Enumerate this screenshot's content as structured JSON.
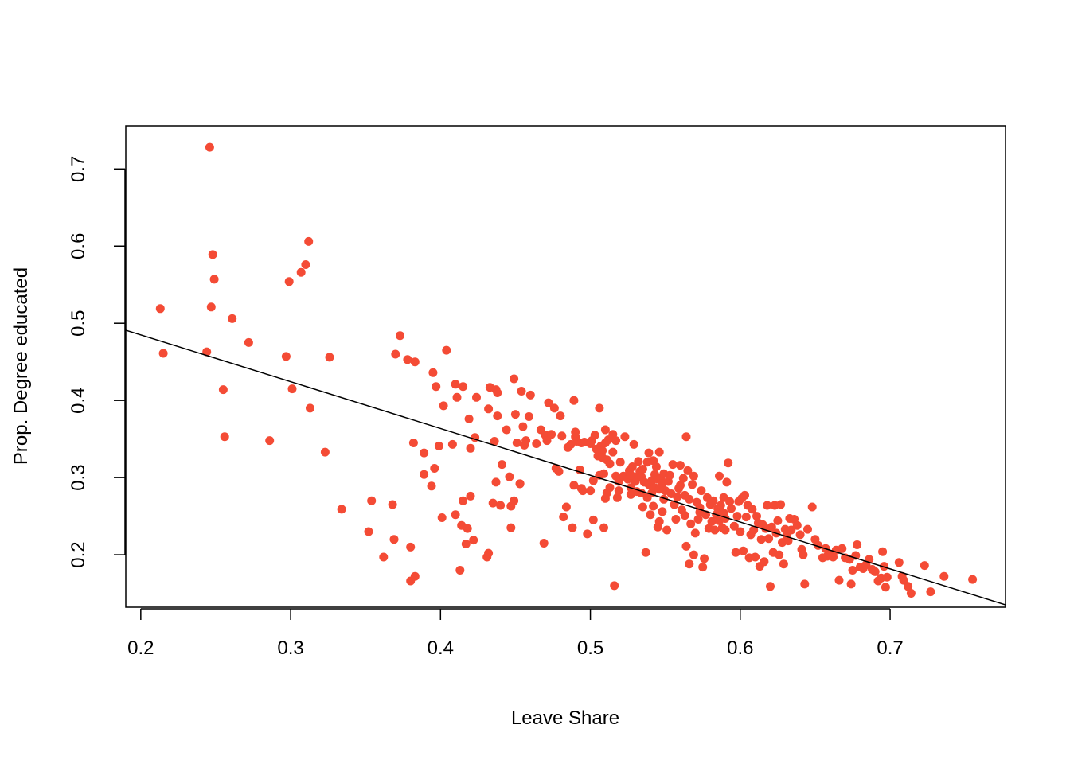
{
  "chart_data": {
    "type": "scatter",
    "title": "",
    "xlabel": "Leave Share",
    "ylabel": "Prop. Degree educated",
    "xlim": [
      0.19,
      0.777
    ],
    "ylim": [
      0.132,
      0.756
    ],
    "x_ticks": [
      0.2,
      0.3,
      0.4,
      0.5,
      0.6,
      0.7
    ],
    "x_tick_labels": [
      "0.2",
      "0.3",
      "0.4",
      "0.5",
      "0.6",
      "0.7"
    ],
    "y_ticks": [
      0.2,
      0.3,
      0.4,
      0.5,
      0.6,
      0.7
    ],
    "y_tick_labels": [
      "0.2",
      "0.3",
      "0.4",
      "0.5",
      "0.6",
      "0.7"
    ],
    "grid": false,
    "point_color": "#f44b35",
    "line_color": "#000000",
    "fit_line": {
      "x": [
        0.19,
        0.777
      ],
      "y": [
        0.491,
        0.135
      ]
    },
    "points": [
      [
        0.213,
        0.519
      ],
      [
        0.215,
        0.461
      ],
      [
        0.244,
        0.463
      ],
      [
        0.246,
        0.728
      ],
      [
        0.247,
        0.521
      ],
      [
        0.248,
        0.589
      ],
      [
        0.249,
        0.557
      ],
      [
        0.255,
        0.414
      ],
      [
        0.256,
        0.353
      ],
      [
        0.261,
        0.506
      ],
      [
        0.272,
        0.475
      ],
      [
        0.286,
        0.348
      ],
      [
        0.297,
        0.457
      ],
      [
        0.299,
        0.554
      ],
      [
        0.301,
        0.415
      ],
      [
        0.307,
        0.566
      ],
      [
        0.31,
        0.576
      ],
      [
        0.312,
        0.606
      ],
      [
        0.313,
        0.39
      ],
      [
        0.323,
        0.333
      ],
      [
        0.326,
        0.456
      ],
      [
        0.334,
        0.259
      ],
      [
        0.352,
        0.23
      ],
      [
        0.354,
        0.27
      ],
      [
        0.362,
        0.197
      ],
      [
        0.368,
        0.265
      ],
      [
        0.369,
        0.22
      ],
      [
        0.37,
        0.46
      ],
      [
        0.373,
        0.484
      ],
      [
        0.378,
        0.453
      ],
      [
        0.38,
        0.21
      ],
      [
        0.38,
        0.166
      ],
      [
        0.382,
        0.345
      ],
      [
        0.383,
        0.172
      ],
      [
        0.383,
        0.45
      ],
      [
        0.389,
        0.332
      ],
      [
        0.389,
        0.304
      ],
      [
        0.394,
        0.289
      ],
      [
        0.395,
        0.436
      ],
      [
        0.396,
        0.312
      ],
      [
        0.397,
        0.418
      ],
      [
        0.399,
        0.341
      ],
      [
        0.401,
        0.248
      ],
      [
        0.402,
        0.393
      ],
      [
        0.404,
        0.465
      ],
      [
        0.408,
        0.343
      ],
      [
        0.41,
        0.252
      ],
      [
        0.41,
        0.421
      ],
      [
        0.411,
        0.404
      ],
      [
        0.413,
        0.18
      ],
      [
        0.414,
        0.238
      ],
      [
        0.415,
        0.27
      ],
      [
        0.415,
        0.418
      ],
      [
        0.417,
        0.214
      ],
      [
        0.418,
        0.234
      ],
      [
        0.419,
        0.376
      ],
      [
        0.42,
        0.338
      ],
      [
        0.42,
        0.276
      ],
      [
        0.422,
        0.219
      ],
      [
        0.423,
        0.352
      ],
      [
        0.424,
        0.404
      ],
      [
        0.431,
        0.197
      ],
      [
        0.432,
        0.202
      ],
      [
        0.432,
        0.389
      ],
      [
        0.433,
        0.417
      ],
      [
        0.435,
        0.267
      ],
      [
        0.436,
        0.347
      ],
      [
        0.437,
        0.414
      ],
      [
        0.437,
        0.294
      ],
      [
        0.438,
        0.38
      ],
      [
        0.438,
        0.41
      ],
      [
        0.44,
        0.264
      ],
      [
        0.441,
        0.317
      ],
      [
        0.444,
        0.362
      ],
      [
        0.446,
        0.301
      ],
      [
        0.447,
        0.235
      ],
      [
        0.447,
        0.263
      ],
      [
        0.449,
        0.27
      ],
      [
        0.449,
        0.428
      ],
      [
        0.45,
        0.382
      ],
      [
        0.451,
        0.345
      ],
      [
        0.453,
        0.292
      ],
      [
        0.454,
        0.412
      ],
      [
        0.455,
        0.366
      ],
      [
        0.456,
        0.342
      ],
      [
        0.457,
        0.348
      ],
      [
        0.459,
        0.379
      ],
      [
        0.46,
        0.407
      ],
      [
        0.464,
        0.344
      ],
      [
        0.467,
        0.362
      ],
      [
        0.469,
        0.215
      ],
      [
        0.47,
        0.355
      ],
      [
        0.471,
        0.348
      ],
      [
        0.472,
        0.397
      ],
      [
        0.474,
        0.356
      ],
      [
        0.476,
        0.39
      ],
      [
        0.477,
        0.312
      ],
      [
        0.479,
        0.308
      ],
      [
        0.48,
        0.38
      ],
      [
        0.481,
        0.354
      ],
      [
        0.482,
        0.249
      ],
      [
        0.484,
        0.262
      ],
      [
        0.485,
        0.339
      ],
      [
        0.487,
        0.343
      ],
      [
        0.488,
        0.235
      ],
      [
        0.489,
        0.29
      ],
      [
        0.489,
        0.4
      ],
      [
        0.49,
        0.353
      ],
      [
        0.49,
        0.359
      ],
      [
        0.491,
        0.347
      ],
      [
        0.493,
        0.31
      ],
      [
        0.494,
        0.345
      ],
      [
        0.494,
        0.286
      ],
      [
        0.495,
        0.283
      ],
      [
        0.496,
        0.346
      ],
      [
        0.498,
        0.227
      ],
      [
        0.5,
        0.344
      ],
      [
        0.5,
        0.283
      ],
      [
        0.501,
        0.348
      ],
      [
        0.502,
        0.296
      ],
      [
        0.502,
        0.245
      ],
      [
        0.503,
        0.355
      ],
      [
        0.504,
        0.337
      ],
      [
        0.505,
        0.328
      ],
      [
        0.505,
        0.337
      ],
      [
        0.506,
        0.303
      ],
      [
        0.506,
        0.39
      ],
      [
        0.507,
        0.341
      ],
      [
        0.508,
        0.335
      ],
      [
        0.508,
        0.326
      ],
      [
        0.509,
        0.235
      ],
      [
        0.509,
        0.305
      ],
      [
        0.51,
        0.345
      ],
      [
        0.51,
        0.362
      ],
      [
        0.51,
        0.273
      ],
      [
        0.511,
        0.28
      ],
      [
        0.511,
        0.323
      ],
      [
        0.512,
        0.349
      ],
      [
        0.513,
        0.287
      ],
      [
        0.513,
        0.318
      ],
      [
        0.515,
        0.356
      ],
      [
        0.515,
        0.333
      ],
      [
        0.516,
        0.16
      ],
      [
        0.517,
        0.302
      ],
      [
        0.517,
        0.348
      ],
      [
        0.518,
        0.274
      ],
      [
        0.519,
        0.295
      ],
      [
        0.519,
        0.283
      ],
      [
        0.52,
        0.32
      ],
      [
        0.522,
        0.302
      ],
      [
        0.523,
        0.353
      ],
      [
        0.525,
        0.298
      ],
      [
        0.526,
        0.309
      ],
      [
        0.527,
        0.287
      ],
      [
        0.527,
        0.278
      ],
      [
        0.528,
        0.314
      ],
      [
        0.529,
        0.301
      ],
      [
        0.529,
        0.343
      ],
      [
        0.53,
        0.295
      ],
      [
        0.531,
        0.282
      ],
      [
        0.532,
        0.321
      ],
      [
        0.533,
        0.308
      ],
      [
        0.534,
        0.28
      ],
      [
        0.534,
        0.301
      ],
      [
        0.535,
        0.311
      ],
      [
        0.535,
        0.262
      ],
      [
        0.536,
        0.294
      ],
      [
        0.537,
        0.203
      ],
      [
        0.538,
        0.32
      ],
      [
        0.538,
        0.274
      ],
      [
        0.539,
        0.332
      ],
      [
        0.539,
        0.291
      ],
      [
        0.54,
        0.252
      ],
      [
        0.541,
        0.296
      ],
      [
        0.541,
        0.28
      ],
      [
        0.542,
        0.263
      ],
      [
        0.542,
        0.322
      ],
      [
        0.543,
        0.304
      ],
      [
        0.543,
        0.287
      ],
      [
        0.544,
        0.314
      ],
      [
        0.545,
        0.236
      ],
      [
        0.545,
        0.298
      ],
      [
        0.546,
        0.333
      ],
      [
        0.546,
        0.243
      ],
      [
        0.547,
        0.3
      ],
      [
        0.548,
        0.256
      ],
      [
        0.548,
        0.292
      ],
      [
        0.549,
        0.305
      ],
      [
        0.549,
        0.272
      ],
      [
        0.55,
        0.283
      ],
      [
        0.551,
        0.232
      ],
      [
        0.552,
        0.295
      ],
      [
        0.553,
        0.303
      ],
      [
        0.554,
        0.279
      ],
      [
        0.555,
        0.317
      ],
      [
        0.556,
        0.265
      ],
      [
        0.557,
        0.246
      ],
      [
        0.558,
        0.275
      ],
      [
        0.559,
        0.286
      ],
      [
        0.56,
        0.316
      ],
      [
        0.561,
        0.258
      ],
      [
        0.562,
        0.299
      ],
      [
        0.563,
        0.277
      ],
      [
        0.563,
        0.251
      ],
      [
        0.564,
        0.353
      ],
      [
        0.564,
        0.211
      ],
      [
        0.565,
        0.309
      ],
      [
        0.566,
        0.272
      ],
      [
        0.566,
        0.188
      ],
      [
        0.567,
        0.24
      ],
      [
        0.568,
        0.291
      ],
      [
        0.569,
        0.302
      ],
      [
        0.569,
        0.2
      ],
      [
        0.57,
        0.228
      ],
      [
        0.571,
        0.268
      ],
      [
        0.572,
        0.246
      ],
      [
        0.573,
        0.261
      ],
      [
        0.574,
        0.283
      ],
      [
        0.575,
        0.184
      ],
      [
        0.576,
        0.195
      ],
      [
        0.577,
        0.252
      ],
      [
        0.578,
        0.274
      ],
      [
        0.579,
        0.234
      ],
      [
        0.58,
        0.265
      ],
      [
        0.581,
        0.243
      ],
      [
        0.582,
        0.27
      ],
      [
        0.583,
        0.232
      ],
      [
        0.584,
        0.252
      ],
      [
        0.585,
        0.26
      ],
      [
        0.586,
        0.244
      ],
      [
        0.586,
        0.302
      ],
      [
        0.587,
        0.264
      ],
      [
        0.588,
        0.235
      ],
      [
        0.589,
        0.254
      ],
      [
        0.589,
        0.274
      ],
      [
        0.59,
        0.232
      ],
      [
        0.591,
        0.294
      ],
      [
        0.592,
        0.319
      ],
      [
        0.593,
        0.269
      ],
      [
        0.594,
        0.26
      ],
      [
        0.596,
        0.237
      ],
      [
        0.597,
        0.203
      ],
      [
        0.598,
        0.25
      ],
      [
        0.599,
        0.269
      ],
      [
        0.6,
        0.23
      ],
      [
        0.601,
        0.273
      ],
      [
        0.602,
        0.205
      ],
      [
        0.603,
        0.277
      ],
      [
        0.604,
        0.249
      ],
      [
        0.605,
        0.264
      ],
      [
        0.606,
        0.196
      ],
      [
        0.607,
        0.226
      ],
      [
        0.608,
        0.259
      ],
      [
        0.609,
        0.232
      ],
      [
        0.61,
        0.197
      ],
      [
        0.611,
        0.25
      ],
      [
        0.612,
        0.241
      ],
      [
        0.613,
        0.185
      ],
      [
        0.614,
        0.22
      ],
      [
        0.615,
        0.239
      ],
      [
        0.616,
        0.191
      ],
      [
        0.617,
        0.234
      ],
      [
        0.618,
        0.264
      ],
      [
        0.619,
        0.221
      ],
      [
        0.62,
        0.159
      ],
      [
        0.621,
        0.236
      ],
      [
        0.622,
        0.203
      ],
      [
        0.623,
        0.264
      ],
      [
        0.624,
        0.228
      ],
      [
        0.625,
        0.244
      ],
      [
        0.626,
        0.2
      ],
      [
        0.627,
        0.265
      ],
      [
        0.628,
        0.216
      ],
      [
        0.629,
        0.188
      ],
      [
        0.63,
        0.233
      ],
      [
        0.631,
        0.225
      ],
      [
        0.632,
        0.218
      ],
      [
        0.633,
        0.247
      ],
      [
        0.634,
        0.232
      ],
      [
        0.636,
        0.246
      ],
      [
        0.638,
        0.238
      ],
      [
        0.64,
        0.226
      ],
      [
        0.641,
        0.207
      ],
      [
        0.642,
        0.2
      ],
      [
        0.643,
        0.162
      ],
      [
        0.645,
        0.233
      ],
      [
        0.648,
        0.262
      ],
      [
        0.65,
        0.22
      ],
      [
        0.652,
        0.212
      ],
      [
        0.655,
        0.196
      ],
      [
        0.657,
        0.208
      ],
      [
        0.658,
        0.198
      ],
      [
        0.66,
        0.2
      ],
      [
        0.662,
        0.197
      ],
      [
        0.664,
        0.206
      ],
      [
        0.666,
        0.167
      ],
      [
        0.668,
        0.208
      ],
      [
        0.67,
        0.196
      ],
      [
        0.673,
        0.194
      ],
      [
        0.674,
        0.162
      ],
      [
        0.675,
        0.18
      ],
      [
        0.677,
        0.199
      ],
      [
        0.678,
        0.213
      ],
      [
        0.68,
        0.184
      ],
      [
        0.682,
        0.182
      ],
      [
        0.684,
        0.187
      ],
      [
        0.686,
        0.194
      ],
      [
        0.688,
        0.181
      ],
      [
        0.69,
        0.178
      ],
      [
        0.692,
        0.166
      ],
      [
        0.694,
        0.17
      ],
      [
        0.695,
        0.204
      ],
      [
        0.696,
        0.185
      ],
      [
        0.697,
        0.158
      ],
      [
        0.698,
        0.171
      ],
      [
        0.706,
        0.19
      ],
      [
        0.708,
        0.172
      ],
      [
        0.709,
        0.167
      ],
      [
        0.712,
        0.159
      ],
      [
        0.714,
        0.15
      ],
      [
        0.723,
        0.186
      ],
      [
        0.727,
        0.152
      ],
      [
        0.736,
        0.172
      ],
      [
        0.755,
        0.168
      ],
      [
        0.453,
        0.292
      ],
      [
        0.527,
        0.303
      ],
      [
        0.546,
        0.285
      ],
      [
        0.56,
        0.29
      ],
      [
        0.573,
        0.255
      ],
      [
        0.59,
        0.247
      ]
    ]
  }
}
